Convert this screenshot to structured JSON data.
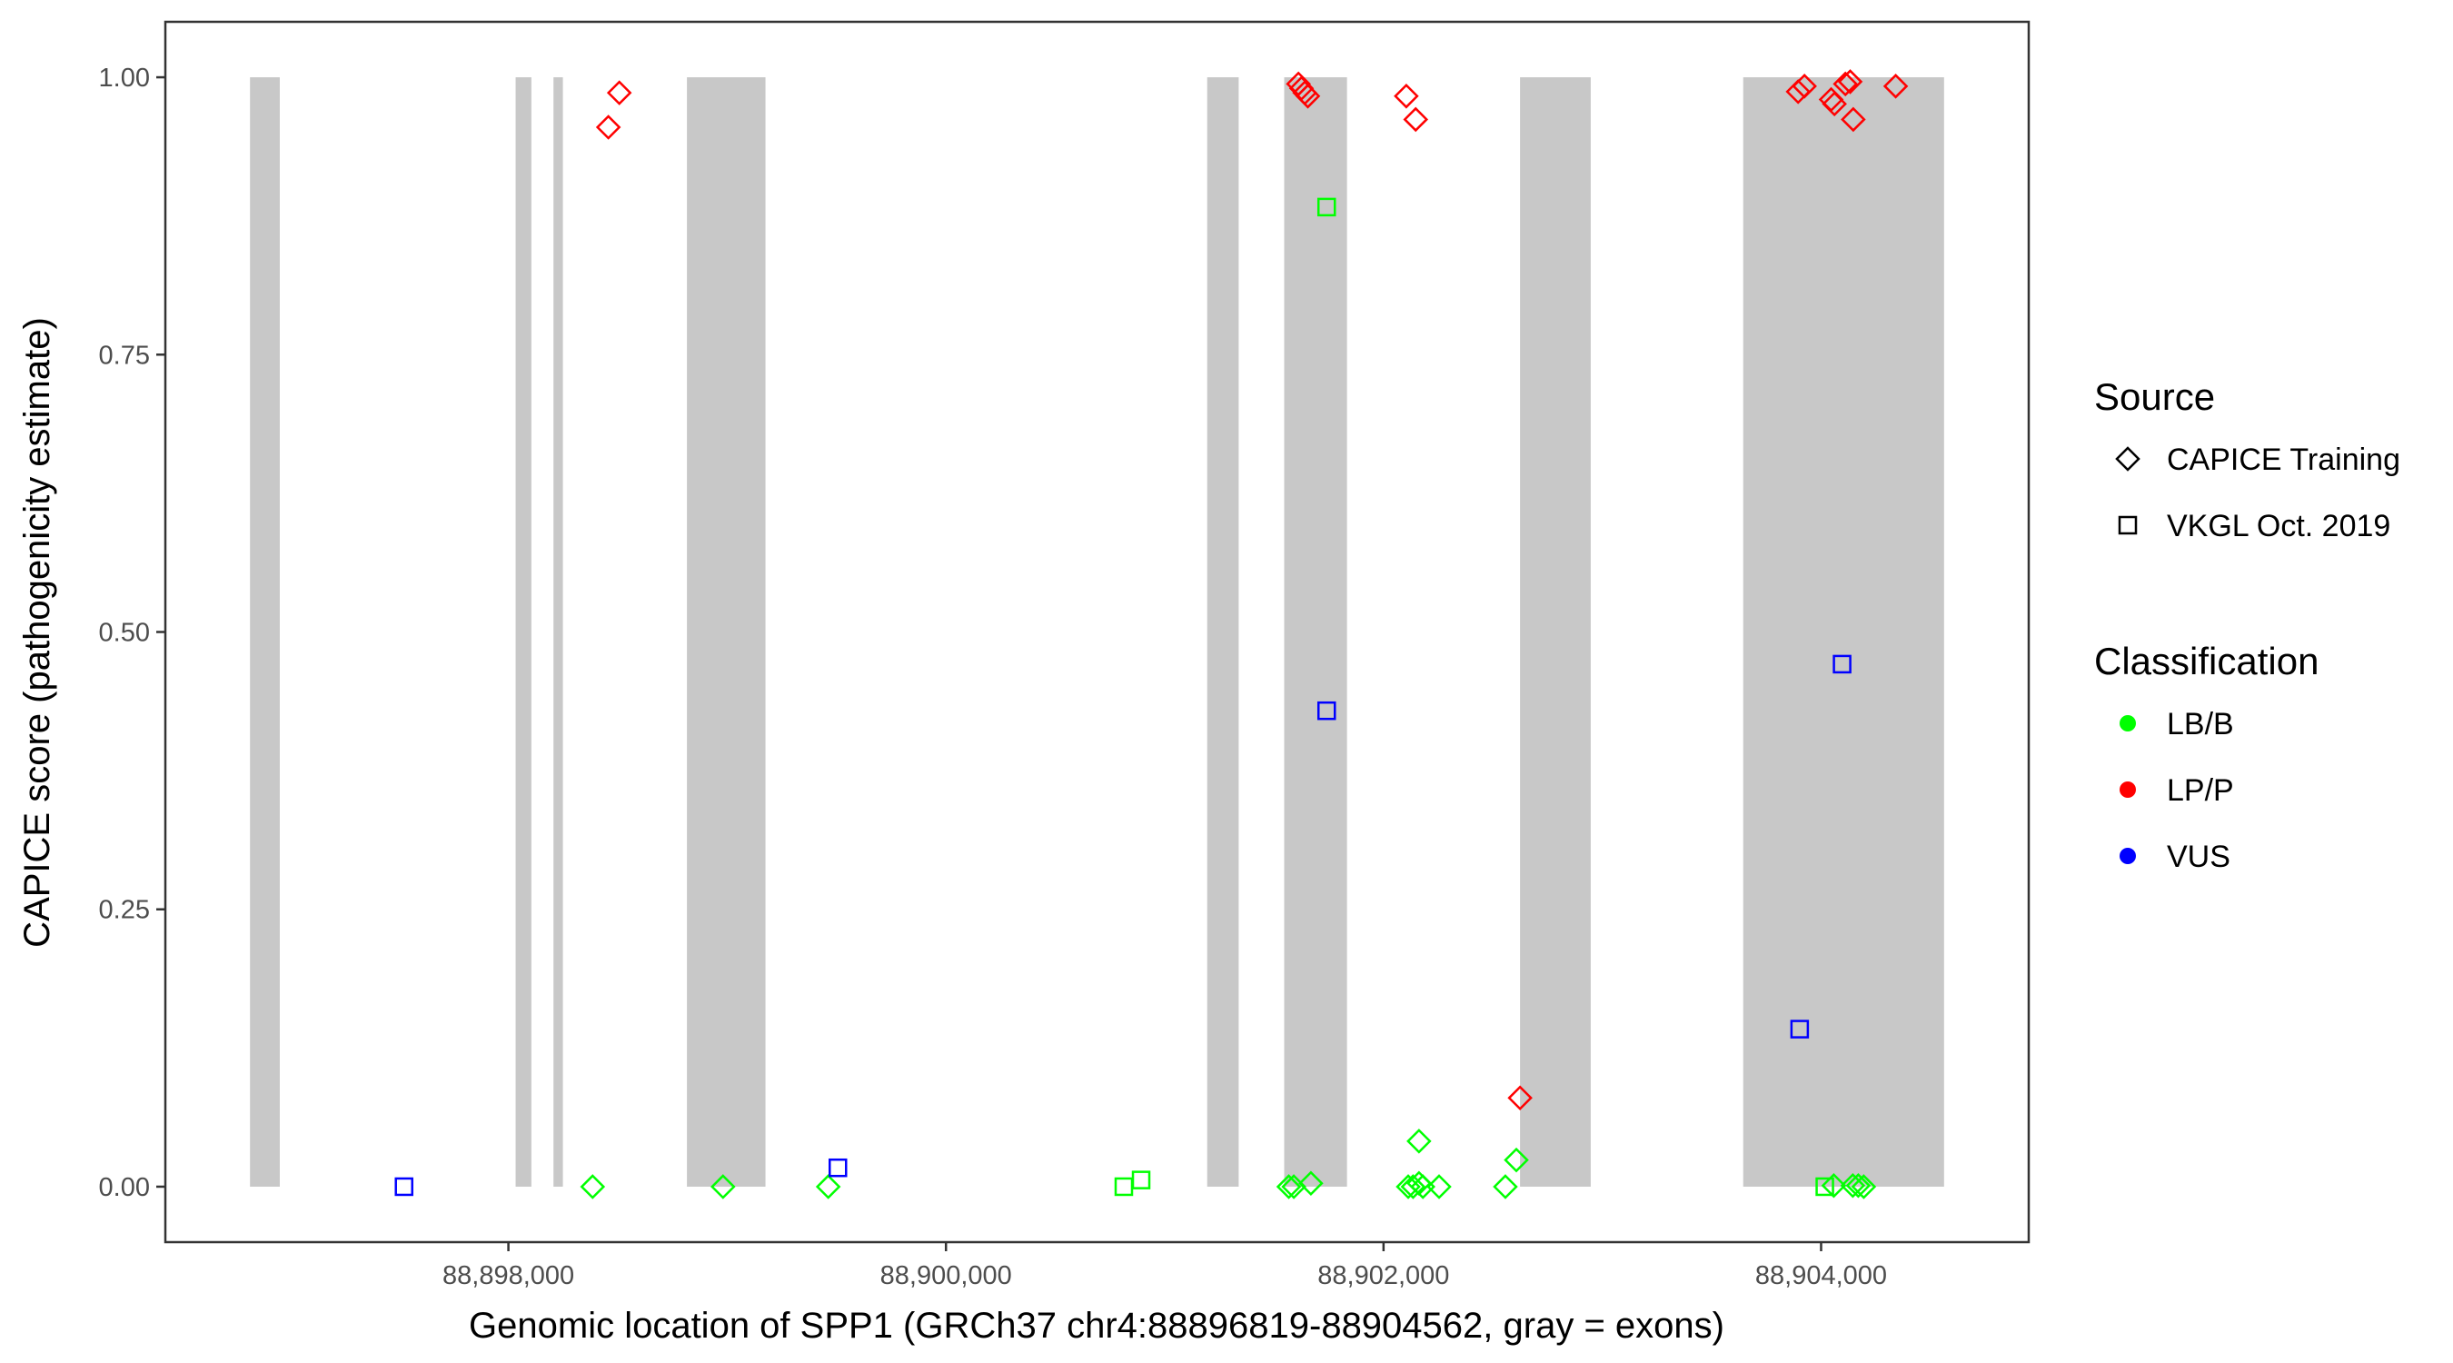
{
  "chart_data": {
    "type": "scatter",
    "title": "",
    "xlabel": "Genomic location of SPP1 (GRCh37 chr4:88896819-88904562, gray = exons)",
    "ylabel": "CAPICE score (pathogenicity estimate)",
    "xlim": [
      88896432,
      88904949
    ],
    "ylim": [
      -0.05,
      1.05
    ],
    "grid": false,
    "x_ticks": [
      88898000,
      88900000,
      88902000,
      88904000
    ],
    "x_tick_labels": [
      "88,898,000",
      "88,900,000",
      "88,902,000",
      "88,904,000"
    ],
    "y_ticks": [
      0,
      0.25,
      0.5,
      0.75,
      1.0
    ],
    "y_tick_labels": [
      "0.00",
      "0.25",
      "0.50",
      "0.75",
      "1.00"
    ],
    "exons": [
      [
        88896819,
        88896955
      ],
      [
        88898033,
        88898105
      ],
      [
        88898206,
        88898249
      ],
      [
        88898816,
        88899175
      ],
      [
        88901194,
        88901338
      ],
      [
        88901546,
        88901833
      ],
      [
        88902624,
        88902947
      ],
      [
        88903644,
        88904562
      ]
    ],
    "exon_color": "#c8c8c8",
    "legend_placement": "right",
    "legends": {
      "source": {
        "title": "Source",
        "items": [
          {
            "label": "CAPICE Training",
            "shape": "diamond"
          },
          {
            "label": "VKGL Oct. 2019",
            "shape": "square"
          }
        ]
      },
      "classification": {
        "title": "Classification",
        "items": [
          {
            "label": "LB/B",
            "color": "#00ff00"
          },
          {
            "label": "LP/P",
            "color": "#ff0000"
          },
          {
            "label": "VUS",
            "color": "#0000ff"
          }
        ]
      }
    },
    "series": [
      {
        "source": "CAPICE Training",
        "classification": "LP/P",
        "points": [
          [
            88898507,
            0.986
          ],
          [
            88898457,
            0.955
          ],
          [
            88901611,
            0.994
          ],
          [
            88901625,
            0.99
          ],
          [
            88901640,
            0.986
          ],
          [
            88901654,
            0.983
          ],
          [
            88902104,
            0.983
          ],
          [
            88902147,
            0.962
          ],
          [
            88902624,
            0.08
          ],
          [
            88903895,
            0.987
          ],
          [
            88903924,
            0.992
          ],
          [
            88904046,
            0.98
          ],
          [
            88904061,
            0.976
          ],
          [
            88904111,
            0.994
          ],
          [
            88904133,
            0.996
          ],
          [
            88904147,
            0.962
          ],
          [
            88904341,
            0.992
          ]
        ]
      },
      {
        "source": "CAPICE Training",
        "classification": "LB/B",
        "points": [
          [
            88898385,
            0.0
          ],
          [
            88898981,
            0.0
          ],
          [
            88899462,
            0.0
          ],
          [
            88901567,
            0.0
          ],
          [
            88901590,
            0.0
          ],
          [
            88901668,
            0.003
          ],
          [
            88902113,
            0.0
          ],
          [
            88902135,
            0.0
          ],
          [
            88902162,
            0.003
          ],
          [
            88902180,
            0.0
          ],
          [
            88902254,
            0.0
          ],
          [
            88902162,
            0.041
          ],
          [
            88902557,
            0.0
          ],
          [
            88902607,
            0.024
          ],
          [
            88904058,
            0.001
          ],
          [
            88904145,
            0.001
          ],
          [
            88904170,
            0.001
          ],
          [
            88904195,
            0.0
          ]
        ]
      },
      {
        "source": "VKGL Oct. 2019",
        "classification": "LB/B",
        "points": [
          [
            88901740,
            0.883
          ],
          [
            88900813,
            0.0
          ],
          [
            88900892,
            0.006
          ],
          [
            88904017,
            0.0
          ]
        ]
      },
      {
        "source": "VKGL Oct. 2019",
        "classification": "VUS",
        "points": [
          [
            88897523,
            0.0
          ],
          [
            88899506,
            0.017
          ],
          [
            88901740,
            0.429
          ],
          [
            88904096,
            0.471
          ],
          [
            88903902,
            0.142
          ]
        ]
      }
    ]
  }
}
